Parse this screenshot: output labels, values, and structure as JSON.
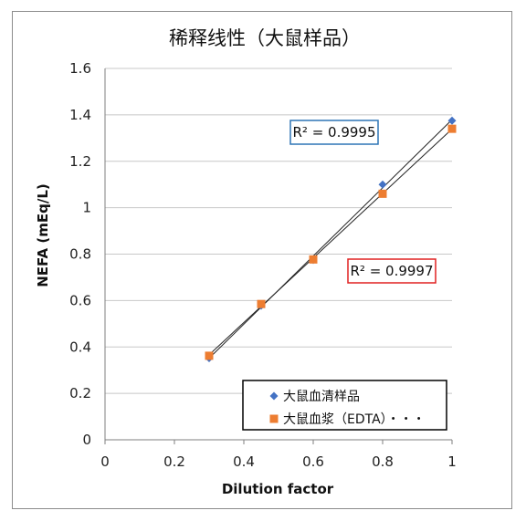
{
  "chart_data": {
    "type": "scatter",
    "title": "稀释线性（大鼠样品）",
    "xlabel": "Dilution factor",
    "ylabel": "NEFA (mEq/L)",
    "xlim": [
      0,
      1
    ],
    "ylim": [
      0,
      1.6
    ],
    "x_ticks": [
      "0",
      "0.2",
      "0.4",
      "0.6",
      "0.8",
      "1"
    ],
    "y_ticks": [
      "0",
      "0.2",
      "0.4",
      "0.6",
      "0.8",
      "1",
      "1.2",
      "1.4",
      "1.6"
    ],
    "grid": "horizontal",
    "legend_position": "bottom-right",
    "series": [
      {
        "name": "大鼠血清样品",
        "marker": "diamond",
        "color": "#4472c4",
        "x": [
          0.3,
          0.45,
          0.6,
          0.8,
          1.0
        ],
        "y": [
          0.352,
          0.578,
          0.775,
          1.1,
          1.375
        ],
        "r2_label": "R² = 0.9995",
        "r2_box_color": "#2e75b6"
      },
      {
        "name": "大鼠血浆（EDTA）・・・",
        "marker": "square",
        "color": "#ed7d31",
        "x": [
          0.3,
          0.45,
          0.6,
          0.8,
          1.0
        ],
        "y": [
          0.362,
          0.585,
          0.777,
          1.06,
          1.34
        ],
        "r2_label": "R² = 0.9997",
        "r2_box_color": "#e02020"
      }
    ]
  }
}
